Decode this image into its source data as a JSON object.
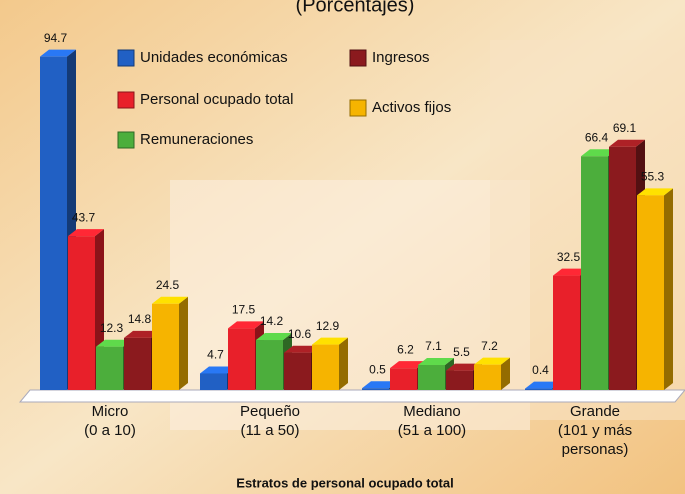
{
  "chart_data": {
    "type": "bar3d",
    "title": "(Porcentajes)",
    "x_label": "Estratos de personal ocupado total",
    "categories": [
      [
        "Micro",
        "(0 a 10)"
      ],
      [
        "Pequeño",
        "(11 a 50)"
      ],
      [
        "Mediano",
        "(51 a 100)"
      ],
      [
        "Grande",
        "(101 y más",
        "personas)"
      ]
    ],
    "series": [
      {
        "name": "Unidades económicas",
        "color": "#2160c4",
        "values": [
          94.7,
          4.7,
          0.5,
          0.4
        ]
      },
      {
        "name": "Personal ocupado total",
        "color": "#e8202a",
        "values": [
          43.7,
          17.5,
          6.2,
          32.5
        ]
      },
      {
        "name": "Remuneraciones",
        "color": "#4cae3c",
        "values": [
          12.3,
          14.2,
          7.1,
          66.4
        ]
      },
      {
        "name": "Ingresos",
        "color": "#8b1a1e",
        "values": [
          14.8,
          10.6,
          5.5,
          69.1
        ]
      },
      {
        "name": "Activos fijos",
        "color": "#f6b400",
        "values": [
          24.5,
          12.9,
          7.2,
          55.3
        ]
      }
    ],
    "ylim": [
      0,
      100
    ]
  }
}
